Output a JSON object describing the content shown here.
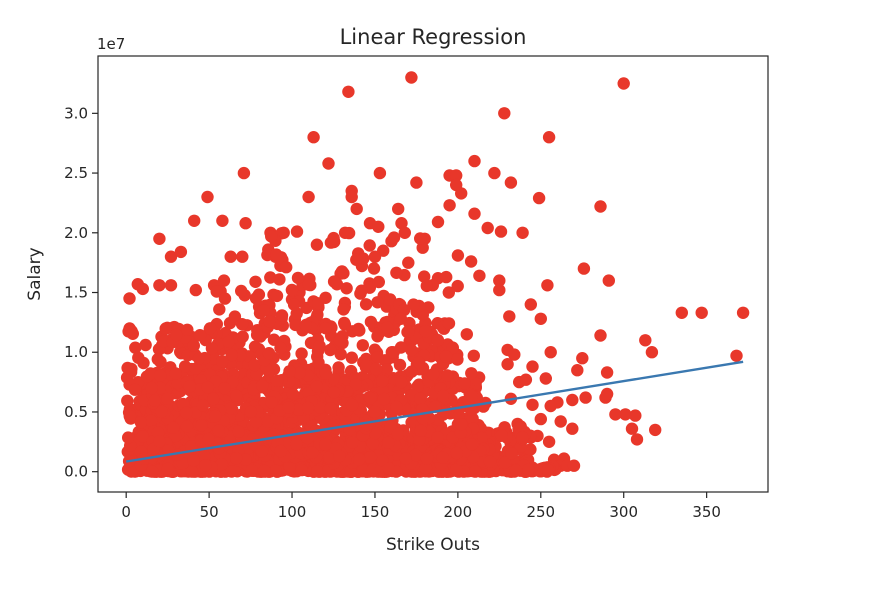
{
  "chart_data": {
    "type": "scatter",
    "title": "Linear Regression",
    "xlabel": "Strike Outs",
    "ylabel": "Salary",
    "y_offset_label": "1e7",
    "xlim": [
      -17,
      387
    ],
    "ylim": [
      -1700000,
      34800000
    ],
    "x_ticks": [
      0,
      50,
      100,
      150,
      200,
      250,
      300,
      350
    ],
    "x_tick_labels": [
      "0",
      "50",
      "100",
      "150",
      "200",
      "250",
      "300",
      "350"
    ],
    "y_ticks": [
      0,
      5000000,
      10000000,
      15000000,
      20000000,
      25000000,
      30000000
    ],
    "y_tick_labels": [
      "0.0",
      "0.5",
      "1.0",
      "1.5",
      "2.0",
      "2.5",
      "3.0"
    ],
    "grid": false,
    "legend": false,
    "colors": {
      "points": "#e8372a",
      "line": "#3a78b0",
      "frame": "#262626"
    },
    "regression_line": {
      "x": [
        0,
        372
      ],
      "y": [
        850000,
        9200000
      ]
    },
    "series": [
      {
        "type": "scatter",
        "points": [
          [
            172,
            33000000
          ],
          [
            300,
            32500000
          ],
          [
            134,
            31800000
          ],
          [
            228,
            30000000
          ],
          [
            113,
            28000000
          ],
          [
            255,
            28000000
          ],
          [
            122,
            25800000
          ],
          [
            210,
            26000000
          ],
          [
            71,
            25000000
          ],
          [
            153,
            25000000
          ],
          [
            195,
            24800000
          ],
          [
            199,
            24800000
          ],
          [
            222,
            25000000
          ],
          [
            175,
            24200000
          ],
          [
            199,
            24000000
          ],
          [
            232,
            24200000
          ],
          [
            136,
            23500000
          ],
          [
            136,
            23000000
          ],
          [
            110,
            23000000
          ],
          [
            49,
            23000000
          ],
          [
            202,
            23300000
          ],
          [
            249,
            22900000
          ],
          [
            286,
            22200000
          ],
          [
            195,
            22300000
          ],
          [
            139,
            22000000
          ],
          [
            164,
            22000000
          ],
          [
            41,
            21000000
          ],
          [
            58,
            21000000
          ],
          [
            72,
            20800000
          ],
          [
            147,
            20800000
          ],
          [
            152,
            20500000
          ],
          [
            166,
            20800000
          ],
          [
            188,
            20900000
          ],
          [
            210,
            21600000
          ],
          [
            218,
            20400000
          ],
          [
            226,
            20100000
          ],
          [
            239,
            20000000
          ],
          [
            20,
            19500000
          ],
          [
            87,
            20000000
          ],
          [
            95,
            20000000
          ],
          [
            103,
            20100000
          ],
          [
            132,
            20000000
          ],
          [
            168,
            20000000
          ],
          [
            180,
            19500000
          ],
          [
            115,
            19000000
          ],
          [
            160,
            19300000
          ],
          [
            155,
            18500000
          ],
          [
            27,
            18000000
          ],
          [
            33,
            18400000
          ],
          [
            63,
            18000000
          ],
          [
            70,
            18000000
          ],
          [
            90,
            18000000
          ],
          [
            150,
            18000000
          ],
          [
            200,
            18100000
          ],
          [
            208,
            17600000
          ],
          [
            276,
            17000000
          ],
          [
            291,
            16000000
          ],
          [
            2,
            14500000
          ],
          [
            7,
            15700000
          ],
          [
            10,
            15300000
          ],
          [
            20,
            15600000
          ],
          [
            27,
            15600000
          ],
          [
            42,
            15200000
          ],
          [
            53,
            15600000
          ],
          [
            59,
            16000000
          ],
          [
            78,
            15900000
          ],
          [
            188,
            16200000
          ],
          [
            213,
            16400000
          ],
          [
            225,
            16000000
          ],
          [
            254,
            15600000
          ],
          [
            225,
            15200000
          ],
          [
            244,
            14000000
          ],
          [
            335,
            13300000
          ],
          [
            347,
            13300000
          ],
          [
            372,
            13300000
          ],
          [
            231,
            13000000
          ],
          [
            250,
            12800000
          ],
          [
            286,
            11400000
          ],
          [
            313,
            11000000
          ],
          [
            317,
            10000000
          ],
          [
            230,
            10200000
          ],
          [
            234,
            9800000
          ],
          [
            256,
            10000000
          ],
          [
            275,
            9500000
          ],
          [
            230,
            9000000
          ],
          [
            245,
            8800000
          ],
          [
            368,
            9700000
          ],
          [
            290,
            8300000
          ],
          [
            272,
            8500000
          ],
          [
            253,
            7800000
          ],
          [
            237,
            7500000
          ],
          [
            241,
            7700000
          ],
          [
            277,
            6200000
          ],
          [
            289,
            6200000
          ],
          [
            290,
            6500000
          ],
          [
            269,
            6000000
          ],
          [
            260,
            5800000
          ],
          [
            232,
            6100000
          ],
          [
            295,
            4800000
          ],
          [
            301,
            4800000
          ],
          [
            307,
            4700000
          ],
          [
            305,
            3600000
          ],
          [
            308,
            2700000
          ],
          [
            319,
            3500000
          ],
          [
            269,
            3600000
          ],
          [
            256,
            5500000
          ],
          [
            250,
            4400000
          ],
          [
            262,
            4200000
          ],
          [
            248,
            3000000
          ],
          [
            264,
            1100000
          ],
          [
            258,
            1000000
          ],
          [
            262,
            500000
          ],
          [
            266,
            500000
          ],
          [
            270,
            500000
          ],
          [
            255,
            2500000
          ],
          [
            245,
            5600000
          ],
          [
            236,
            4000000
          ],
          [
            240,
            1200000
          ],
          [
            228,
            500000
          ]
        ],
        "dense_regions": [
          {
            "x": [
              2,
              260
            ],
            "y": [
              0,
              500000
            ],
            "count": 420,
            "weight": 1.0
          },
          {
            "x": [
              2,
              245
            ],
            "y": [
              0,
              4000000
            ],
            "count": 620,
            "weight": 1.0
          },
          {
            "x": [
              5,
              220
            ],
            "y": [
              0,
              8000000
            ],
            "count": 620,
            "weight": 1.0
          },
          {
            "x": [
              10,
              210
            ],
            "y": [
              1000000,
              12500000
            ],
            "count": 420,
            "weight": 1.0
          },
          {
            "x": [
              50,
              200
            ],
            "y": [
              5000000,
              16500000
            ],
            "count": 260,
            "weight": 1.0
          },
          {
            "x": [
              80,
              180
            ],
            "y": [
              12000000,
              20000000
            ],
            "count": 60,
            "weight": 1.0
          },
          {
            "x": [
              0,
              60
            ],
            "y": [
              0,
              12000000
            ],
            "count": 180,
            "weight": 1.0
          }
        ]
      }
    ]
  }
}
